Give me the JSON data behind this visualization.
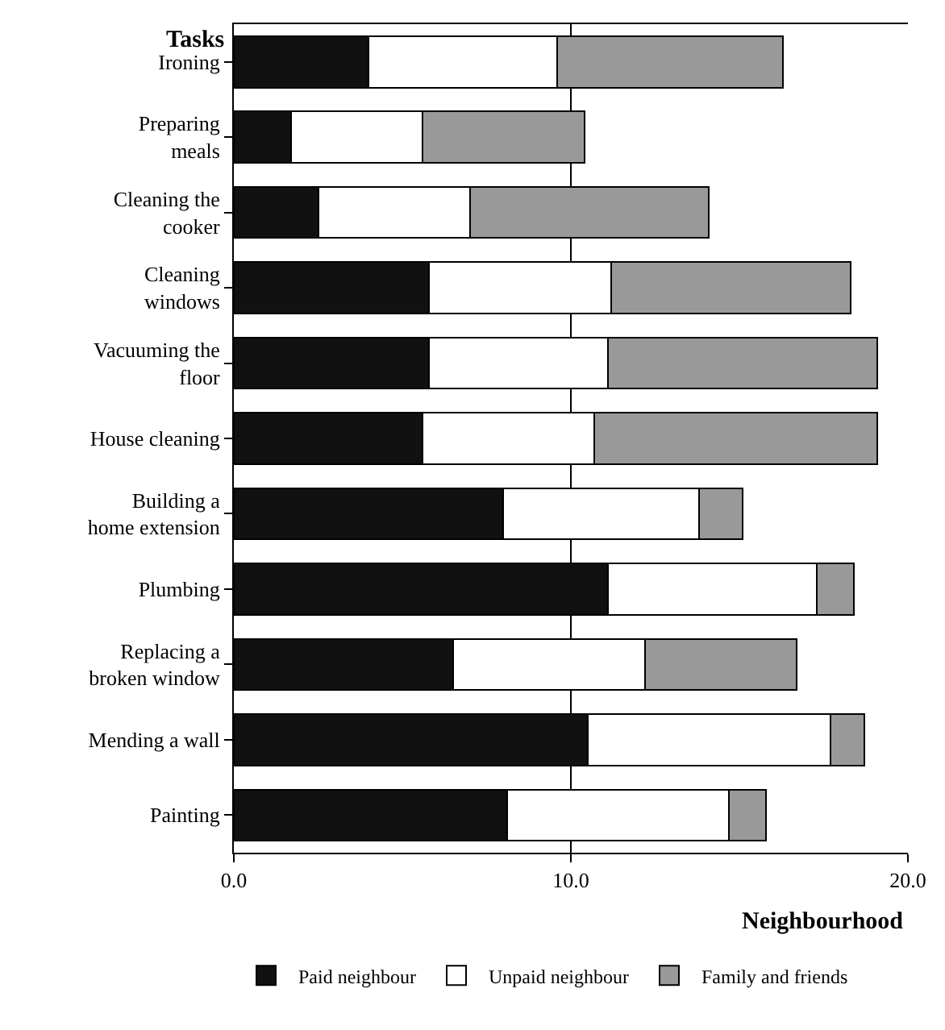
{
  "chart_data": {
    "type": "bar",
    "orientation": "horizontal",
    "stacked": true,
    "ylabel": "Tasks",
    "xlabel": "Neighbourhood",
    "categories": [
      "Ironing",
      "Preparing meals",
      "Cleaning the cooker",
      "Cleaning windows",
      "Vacuuming the floor",
      "House cleaning",
      "Building a home extension",
      "Plumbing",
      "Replacing a broken window",
      "Mending a wall",
      "Painting"
    ],
    "series": [
      {
        "name": "Paid neighbour",
        "color": "#111111",
        "values": [
          4.0,
          1.7,
          2.5,
          5.8,
          5.8,
          5.6,
          8.0,
          11.1,
          6.5,
          10.5,
          8.1
        ]
      },
      {
        "name": "Unpaid neighbour",
        "color": "#ffffff",
        "values": [
          5.6,
          3.9,
          4.5,
          5.4,
          5.3,
          5.1,
          5.8,
          6.2,
          5.7,
          7.2,
          6.6
        ]
      },
      {
        "name": "Family and friends",
        "color": "#999999",
        "values": [
          6.7,
          4.8,
          7.1,
          7.1,
          8.0,
          8.4,
          1.3,
          1.1,
          4.5,
          1.0,
          1.1
        ]
      }
    ],
    "xlim": [
      0,
      20
    ],
    "xticks": [
      {
        "value": 0,
        "label": "0.0"
      },
      {
        "value": 10,
        "label": "10.0"
      },
      {
        "value": 20,
        "label": "20.0"
      }
    ],
    "grid": "x",
    "legend": "bottom"
  }
}
